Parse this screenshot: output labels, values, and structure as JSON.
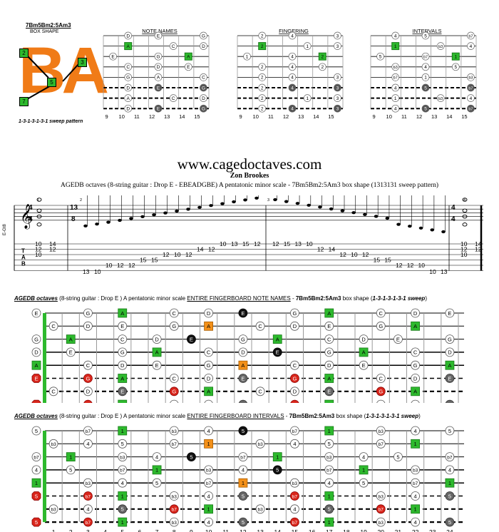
{
  "top": {
    "box_title": "7Bm5Bm2:5Am3",
    "box_subtitle": "BOX SHAPE",
    "box_letters": "BA",
    "box_badges": [
      "2",
      "3",
      "5",
      "7"
    ],
    "sweep_caption": "1-3-1-3-1-3-1 sweep pattern",
    "diagrams": [
      {
        "title": "NOTE NAMES",
        "frets": [
          "9",
          "10",
          "11",
          "12",
          "13",
          "14",
          "15"
        ]
      },
      {
        "title": "FINGERING",
        "frets": [
          "9",
          "10",
          "11",
          "12",
          "13",
          "14",
          "15"
        ]
      },
      {
        "title": "INTERVALS",
        "frets": [
          "9",
          "10",
          "11",
          "12",
          "13",
          "14",
          "15"
        ]
      }
    ]
  },
  "header": {
    "website": "www.cagedoctaves.com",
    "author": "Zon Brookes",
    "description": "AGEDB octaves (8-string guitar : Drop E - EBEADGBE) A pentatonic minor scale - 7Bm5Bm2:5Am3 box shape (1313131 sweep pattern)"
  },
  "notation": {
    "instrument": "E-Gt8",
    "time_start": [
      "4",
      "4"
    ],
    "time_mid": [
      "13",
      "8"
    ],
    "time_end": [
      "4",
      "4"
    ],
    "measure_numbers": [
      "1",
      "2",
      "3",
      "4"
    ],
    "tab_label": [
      "T",
      "A",
      "B"
    ],
    "tab_m1": [
      [
        "10",
        "14"
      ],
      [
        "12",
        "12"
      ],
      [
        "10"
      ]
    ],
    "tab_m2": [
      "13",
      "10",
      "10",
      "12",
      "12",
      "15",
      "15",
      "12",
      "10",
      "12",
      "14",
      "12",
      "10",
      "13",
      "15",
      "12"
    ],
    "tab_m3": [
      "12",
      "15",
      "13",
      "10",
      "12",
      "14",
      "12",
      "10",
      "12",
      "15",
      "15",
      "12",
      "12",
      "10",
      "10",
      "13"
    ],
    "tab_m4": [
      [
        "10",
        "14"
      ],
      [
        "12",
        "12"
      ],
      [
        "10"
      ]
    ]
  },
  "board1": {
    "title_bold": "AGEDB octaves",
    "title_mid": "(8-string guitar : Drop E ) A pentatonic minor scale",
    "title_underline": "ENTIRE FINGERBOARD NOTE NAMES",
    "title_dash": "-",
    "title_shape": "7Bm5Bm2:5Am3",
    "title_box": "box shape (",
    "title_sweep": "1-3-1-3-1-3-1 sweep",
    "title_close": ")"
  },
  "board2": {
    "title_bold": "AGEDB octaves",
    "title_mid": "(8-string guitar : Drop E ) A pentatonic minor scale",
    "title_underline": "ENTIRE FINGERBOARD INTERVALS",
    "title_dash": "-",
    "title_shape": "7Bm5Bm2:5Am3",
    "title_box": "box shape (",
    "title_sweep": "1-3-1-3-1-3-1 sweep",
    "title_close": ")"
  },
  "fret_numbers": [
    "1",
    "2",
    "3",
    "4",
    "5",
    "6",
    "7",
    "8",
    "9",
    "10",
    "11",
    "12",
    "13",
    "14",
    "15",
    "16",
    "17",
    "18",
    "19",
    "20",
    "21",
    "22",
    "23",
    "24"
  ],
  "colors": {
    "green": "#2db92d",
    "orange": "#f39019",
    "red": "#d9261c",
    "black": "#111111",
    "gray": "#666666"
  }
}
